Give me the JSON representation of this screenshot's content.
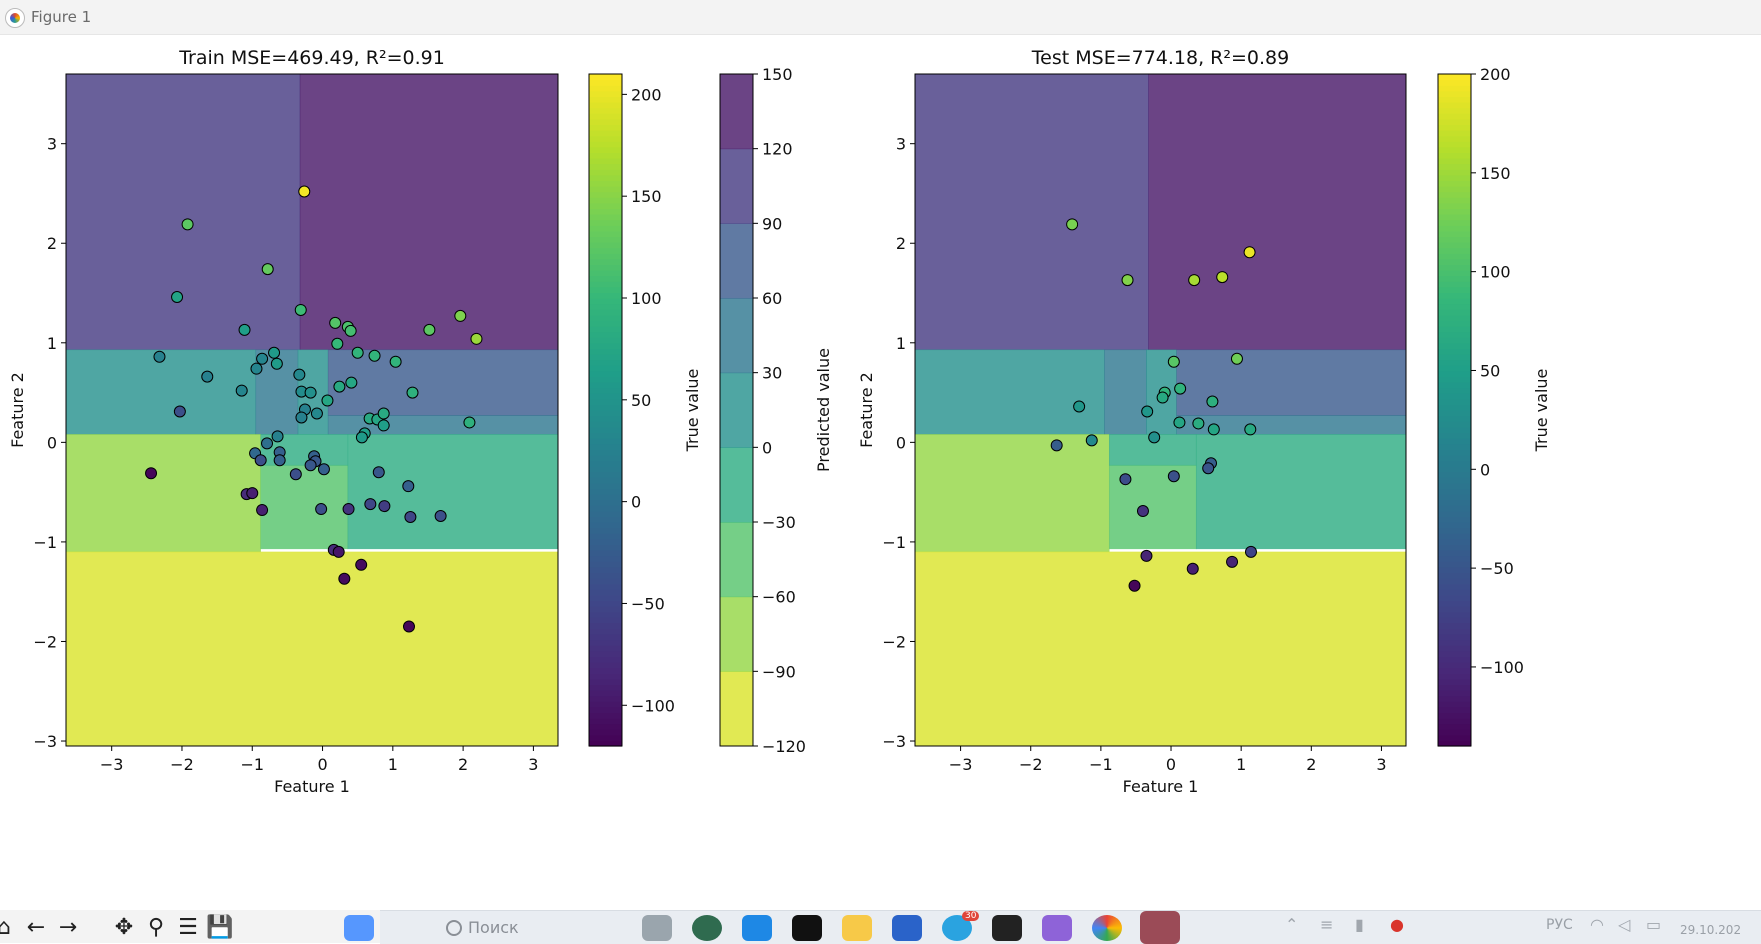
{
  "window": {
    "title": "Figure 1"
  },
  "toolbar": {
    "buttons": [
      {
        "name": "home-icon",
        "glyph": "⌂"
      },
      {
        "name": "back-icon",
        "glyph": "←"
      },
      {
        "name": "forward-icon",
        "glyph": "→"
      },
      {
        "name": "pan-icon",
        "glyph": "✥"
      },
      {
        "name": "zoom-icon",
        "glyph": "⚲"
      },
      {
        "name": "configure-icon",
        "glyph": "☰"
      },
      {
        "name": "save-icon",
        "glyph": "💾"
      }
    ]
  },
  "taskbar": {
    "search_placeholder": "Поиск",
    "language": "РУС",
    "clock": "29.10.202",
    "badge": "30"
  },
  "colors": {
    "regionAlpha": 0.8,
    "viridis": [
      "#440154",
      "#482878",
      "#3e4989",
      "#31688e",
      "#26828e",
      "#1f9e89",
      "#35b779",
      "#6ece58",
      "#b5de2b",
      "#fde725"
    ]
  },
  "chart_data": [
    {
      "type": "scatter",
      "title": "Train MSE=469.49, R²=0.91",
      "xlabel": "Feature 1",
      "ylabel": "Feature 2",
      "xlim": [
        -3.65,
        3.35
      ],
      "ylim": [
        -3.05,
        3.7
      ],
      "xticks": [
        -3,
        -2,
        -1,
        0,
        1,
        2,
        3
      ],
      "yticks": [
        -3,
        -2,
        -1,
        0,
        1,
        2,
        3
      ],
      "regions": [
        {
          "x": [
            -3.65,
            -0.32
          ],
          "y": [
            0.93,
            3.7
          ],
          "value": 105
        },
        {
          "x": [
            -0.32,
            3.35
          ],
          "y": [
            0.93,
            3.7
          ],
          "value": 135
        },
        {
          "x": [
            -3.65,
            -0.95
          ],
          "y": [
            0.08,
            0.93
          ],
          "value": 15
        },
        {
          "x": [
            -0.95,
            -0.35
          ],
          "y": [
            0.08,
            0.93
          ],
          "value": 45
        },
        {
          "x": [
            -0.35,
            0.08
          ],
          "y": [
            0.08,
            0.93
          ],
          "value": 15
        },
        {
          "x": [
            0.08,
            3.35
          ],
          "y": [
            0.27,
            0.93
          ],
          "value": 75
        },
        {
          "x": [
            0.08,
            3.35
          ],
          "y": [
            0.08,
            0.27
          ],
          "value": 45
        },
        {
          "x": [
            -3.65,
            -0.88
          ],
          "y": [
            -1.1,
            0.08
          ],
          "value": -75
        },
        {
          "x": [
            -0.88,
            0.36
          ],
          "y": [
            -1.07,
            -0.23
          ],
          "value": -45
        },
        {
          "x": [
            -0.88,
            0.36
          ],
          "y": [
            -0.23,
            0.08
          ],
          "value": -15
        },
        {
          "x": [
            0.36,
            3.35
          ],
          "y": [
            -1.07,
            0.08
          ],
          "value": -15
        },
        {
          "x": [
            -3.65,
            3.35
          ],
          "y": [
            -3.05,
            -1.1
          ],
          "value": -105
        }
      ],
      "points": [
        {
          "x": -0.26,
          "y": 2.52,
          "value": 205
        },
        {
          "x": -1.92,
          "y": 2.19,
          "value": 125
        },
        {
          "x": -0.78,
          "y": 1.74,
          "value": 130
        },
        {
          "x": -2.07,
          "y": 1.46,
          "value": 70
        },
        {
          "x": -0.31,
          "y": 1.33,
          "value": 105
        },
        {
          "x": 1.96,
          "y": 1.27,
          "value": 145
        },
        {
          "x": 2.19,
          "y": 1.04,
          "value": 160
        },
        {
          "x": 1.52,
          "y": 1.13,
          "value": 125
        },
        {
          "x": 0.18,
          "y": 1.2,
          "value": 120
        },
        {
          "x": 0.36,
          "y": 1.16,
          "value": 115
        },
        {
          "x": 0.4,
          "y": 1.12,
          "value": 110
        },
        {
          "x": 0.21,
          "y": 0.99,
          "value": 100
        },
        {
          "x": 0.5,
          "y": 0.9,
          "value": 95
        },
        {
          "x": 0.74,
          "y": 0.87,
          "value": 95
        },
        {
          "x": 1.04,
          "y": 0.81,
          "value": 95
        },
        {
          "x": -1.11,
          "y": 1.13,
          "value": 65
        },
        {
          "x": -2.32,
          "y": 0.86,
          "value": 25
        },
        {
          "x": -0.86,
          "y": 0.84,
          "value": 30
        },
        {
          "x": -0.69,
          "y": 0.9,
          "value": 60
        },
        {
          "x": -0.65,
          "y": 0.79,
          "value": 60
        },
        {
          "x": -0.94,
          "y": 0.74,
          "value": 30
        },
        {
          "x": -1.64,
          "y": 0.66,
          "value": 25
        },
        {
          "x": -0.33,
          "y": 0.68,
          "value": 35
        },
        {
          "x": -1.15,
          "y": 0.52,
          "value": 30
        },
        {
          "x": -0.3,
          "y": 0.51,
          "value": 40
        },
        {
          "x": -0.17,
          "y": 0.5,
          "value": 45
        },
        {
          "x": 0.24,
          "y": 0.56,
          "value": 80
        },
        {
          "x": 0.41,
          "y": 0.6,
          "value": 75
        },
        {
          "x": 1.28,
          "y": 0.5,
          "value": 90
        },
        {
          "x": 0.07,
          "y": 0.42,
          "value": 75
        },
        {
          "x": -2.03,
          "y": 0.31,
          "value": -40
        },
        {
          "x": -0.25,
          "y": 0.33,
          "value": 25
        },
        {
          "x": -0.08,
          "y": 0.29,
          "value": 35
        },
        {
          "x": -0.3,
          "y": 0.25,
          "value": 25
        },
        {
          "x": 0.67,
          "y": 0.24,
          "value": 80
        },
        {
          "x": 0.78,
          "y": 0.23,
          "value": 75
        },
        {
          "x": 0.87,
          "y": 0.29,
          "value": 80
        },
        {
          "x": 0.87,
          "y": 0.17,
          "value": 65
        },
        {
          "x": 2.09,
          "y": 0.2,
          "value": 90
        },
        {
          "x": 0.6,
          "y": 0.09,
          "value": 65
        },
        {
          "x": 0.56,
          "y": 0.05,
          "value": 60
        },
        {
          "x": -0.64,
          "y": 0.06,
          "value": 25
        },
        {
          "x": -0.79,
          "y": -0.01,
          "value": 0
        },
        {
          "x": -0.96,
          "y": -0.11,
          "value": -10
        },
        {
          "x": -0.61,
          "y": -0.1,
          "value": -20
        },
        {
          "x": -0.12,
          "y": -0.14,
          "value": -20
        },
        {
          "x": -0.1,
          "y": -0.19,
          "value": -30
        },
        {
          "x": -0.17,
          "y": -0.23,
          "value": -30
        },
        {
          "x": -0.88,
          "y": -0.18,
          "value": -40
        },
        {
          "x": -0.61,
          "y": -0.18,
          "value": -20
        },
        {
          "x": 0.02,
          "y": -0.27,
          "value": -20
        },
        {
          "x": -0.38,
          "y": -0.32,
          "value": -40
        },
        {
          "x": -2.44,
          "y": -0.31,
          "value": -115
        },
        {
          "x": 0.8,
          "y": -0.3,
          "value": -30
        },
        {
          "x": 1.22,
          "y": -0.44,
          "value": -20
        },
        {
          "x": -1.08,
          "y": -0.52,
          "value": -80
        },
        {
          "x": -1.0,
          "y": -0.51,
          "value": -90
        },
        {
          "x": -0.86,
          "y": -0.68,
          "value": -90
        },
        {
          "x": -0.02,
          "y": -0.67,
          "value": -40
        },
        {
          "x": 0.37,
          "y": -0.67,
          "value": -70
        },
        {
          "x": 0.68,
          "y": -0.62,
          "value": -50
        },
        {
          "x": 0.88,
          "y": -0.64,
          "value": -60
        },
        {
          "x": 1.25,
          "y": -0.75,
          "value": -50
        },
        {
          "x": 1.68,
          "y": -0.74,
          "value": -40
        },
        {
          "x": 0.16,
          "y": -1.08,
          "value": -80
        },
        {
          "x": 0.23,
          "y": -1.1,
          "value": -100
        },
        {
          "x": 0.55,
          "y": -1.23,
          "value": -110
        },
        {
          "x": 0.31,
          "y": -1.37,
          "value": -110
        },
        {
          "x": 1.23,
          "y": -1.85,
          "value": -115
        }
      ]
    },
    {
      "type": "scatter",
      "title": "Test MSE=774.18, R²=0.89",
      "xlabel": "Feature 1",
      "ylabel": "Feature 2",
      "xlim": [
        -3.65,
        3.35
      ],
      "ylim": [
        -3.05,
        3.7
      ],
      "xticks": [
        -3,
        -2,
        -1,
        0,
        1,
        2,
        3
      ],
      "yticks": [
        -3,
        -2,
        -1,
        0,
        1,
        2,
        3
      ],
      "regions": [
        {
          "x": [
            -3.65,
            -0.32
          ],
          "y": [
            0.93,
            3.7
          ],
          "value": 105
        },
        {
          "x": [
            -0.32,
            3.35
          ],
          "y": [
            0.93,
            3.7
          ],
          "value": 135
        },
        {
          "x": [
            -3.65,
            -0.95
          ],
          "y": [
            0.08,
            0.93
          ],
          "value": 15
        },
        {
          "x": [
            -0.95,
            -0.35
          ],
          "y": [
            0.08,
            0.93
          ],
          "value": 45
        },
        {
          "x": [
            -0.35,
            0.08
          ],
          "y": [
            0.08,
            0.93
          ],
          "value": 15
        },
        {
          "x": [
            0.08,
            3.35
          ],
          "y": [
            0.27,
            0.93
          ],
          "value": 75
        },
        {
          "x": [
            0.08,
            3.35
          ],
          "y": [
            0.08,
            0.27
          ],
          "value": 45
        },
        {
          "x": [
            -3.65,
            -0.88
          ],
          "y": [
            -1.1,
            0.08
          ],
          "value": -75
        },
        {
          "x": [
            -0.88,
            0.36
          ],
          "y": [
            -1.07,
            -0.23
          ],
          "value": -45
        },
        {
          "x": [
            -0.88,
            0.36
          ],
          "y": [
            -0.23,
            0.08
          ],
          "value": -15
        },
        {
          "x": [
            0.36,
            3.35
          ],
          "y": [
            -1.07,
            0.08
          ],
          "value": -15
        },
        {
          "x": [
            -3.65,
            3.35
          ],
          "y": [
            -3.05,
            -1.1
          ],
          "value": -105
        }
      ],
      "points": [
        {
          "x": -1.41,
          "y": 2.19,
          "value": 130
        },
        {
          "x": 1.12,
          "y": 1.91,
          "value": 190
        },
        {
          "x": 0.73,
          "y": 1.66,
          "value": 165
        },
        {
          "x": 0.33,
          "y": 1.63,
          "value": 155
        },
        {
          "x": -0.62,
          "y": 1.63,
          "value": 135
        },
        {
          "x": 0.94,
          "y": 0.84,
          "value": 125
        },
        {
          "x": 0.04,
          "y": 0.81,
          "value": 110
        },
        {
          "x": 0.13,
          "y": 0.54,
          "value": 80
        },
        {
          "x": -0.09,
          "y": 0.5,
          "value": 80
        },
        {
          "x": -0.12,
          "y": 0.45,
          "value": 65
        },
        {
          "x": 0.59,
          "y": 0.41,
          "value": 75
        },
        {
          "x": -1.31,
          "y": 0.36,
          "value": 40
        },
        {
          "x": -0.34,
          "y": 0.31,
          "value": 40
        },
        {
          "x": 0.12,
          "y": 0.2,
          "value": 60
        },
        {
          "x": 0.39,
          "y": 0.19,
          "value": 70
        },
        {
          "x": 0.61,
          "y": 0.13,
          "value": 60
        },
        {
          "x": 1.13,
          "y": 0.13,
          "value": 65
        },
        {
          "x": -0.24,
          "y": 0.05,
          "value": 30
        },
        {
          "x": -1.13,
          "y": 0.02,
          "value": 20
        },
        {
          "x": -1.63,
          "y": -0.03,
          "value": -40
        },
        {
          "x": 0.57,
          "y": -0.21,
          "value": -40
        },
        {
          "x": 0.53,
          "y": -0.26,
          "value": -50
        },
        {
          "x": 0.04,
          "y": -0.34,
          "value": -55
        },
        {
          "x": -0.65,
          "y": -0.37,
          "value": -60
        },
        {
          "x": -0.4,
          "y": -0.69,
          "value": -90
        },
        {
          "x": 1.14,
          "y": -1.1,
          "value": -70
        },
        {
          "x": -0.35,
          "y": -1.14,
          "value": -105
        },
        {
          "x": 0.87,
          "y": -1.2,
          "value": -105
        },
        {
          "x": 0.31,
          "y": -1.27,
          "value": -110
        },
        {
          "x": -0.52,
          "y": -1.44,
          "value": -135
        }
      ]
    }
  ],
  "colorbars": {
    "train_true": {
      "label": "True value",
      "range": [
        -120,
        210
      ],
      "ticks": [
        -100,
        -50,
        0,
        50,
        100,
        150,
        200
      ]
    },
    "predicted": {
      "label": "Predicted value",
      "range": [
        -120,
        150
      ],
      "ticks": [
        -120,
        -90,
        -60,
        -30,
        0,
        30,
        60,
        90,
        120,
        150
      ]
    },
    "test_true": {
      "label": "True value",
      "range": [
        -140,
        200
      ],
      "ticks": [
        -100,
        -50,
        0,
        50,
        100,
        150,
        200
      ]
    }
  }
}
